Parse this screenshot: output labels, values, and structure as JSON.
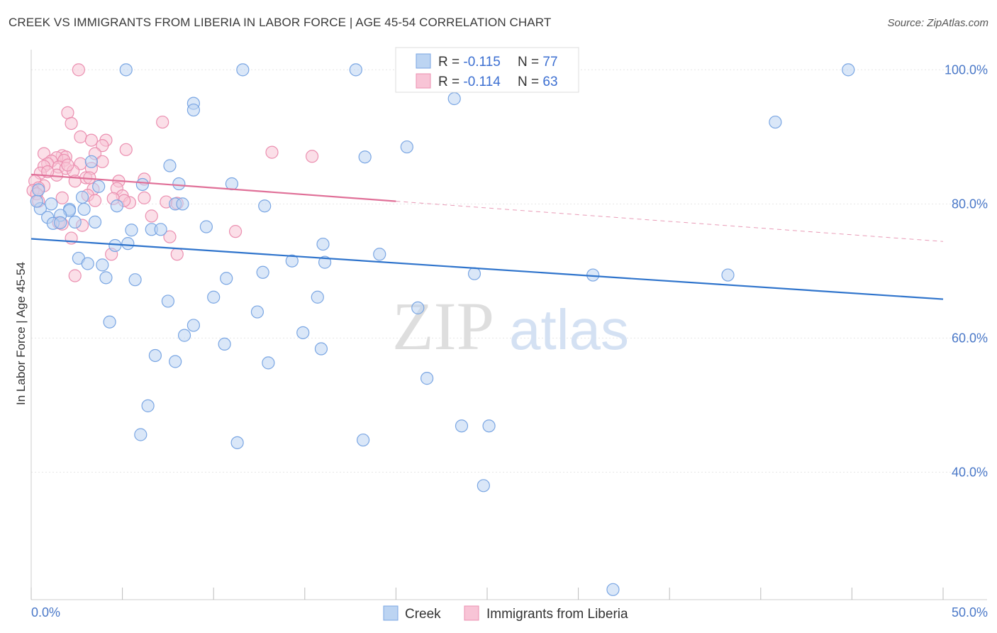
{
  "title": "CREEK VS IMMIGRANTS FROM LIBERIA IN LABOR FORCE | AGE 45-54 CORRELATION CHART",
  "source": "Source: ZipAtlas.com",
  "watermark": {
    "zip": "ZIP",
    "atlas": "atlas"
  },
  "chart_data": {
    "type": "scatter",
    "title": "CREEK VS IMMIGRANTS FROM LIBERIA IN LABOR FORCE | AGE 45-54 CORRELATION CHART",
    "xlabel": "",
    "ylabel": "In Labor Force | Age 45-54",
    "xlim": [
      0,
      50
    ],
    "ylim": [
      21,
      103
    ],
    "x_tick_labels": [
      "0.0%",
      "50.0%"
    ],
    "y_ticks": [
      40,
      60,
      80,
      100
    ],
    "y_tick_labels": [
      "40.0%",
      "60.0%",
      "80.0%",
      "100.0%"
    ],
    "grid": true,
    "legend_position": "top-center",
    "colors": {
      "creek_fill": "#bcd4f2",
      "creek_stroke": "#7aa6e3",
      "creek_line": "#2f74cc",
      "liberia_fill": "#f8c4d6",
      "liberia_stroke": "#eb8fb0",
      "liberia_line": "#e07098"
    },
    "stats": [
      {
        "r_label": "R = ",
        "r": "-0.115",
        "n_label": "N = ",
        "n": "77"
      },
      {
        "r_label": "R = ",
        "r": "-0.114",
        "n_label": "N = ",
        "n": "63"
      }
    ],
    "series": [
      {
        "name": "Creek",
        "trend": {
          "x": [
            0,
            50
          ],
          "y": [
            74.8,
            65.8
          ]
        },
        "points": [
          [
            5.2,
            100
          ],
          [
            11.6,
            100
          ],
          [
            17.8,
            100
          ],
          [
            44.8,
            100
          ],
          [
            8.9,
            95
          ],
          [
            8.9,
            94
          ],
          [
            23.2,
            95.7
          ],
          [
            40.8,
            92.2
          ],
          [
            20.6,
            88.5
          ],
          [
            18.3,
            87
          ],
          [
            7.6,
            85.7
          ],
          [
            3.3,
            86.3
          ],
          [
            11.0,
            83
          ],
          [
            8.1,
            83
          ],
          [
            6.1,
            82.9
          ],
          [
            3.7,
            82.6
          ],
          [
            2.8,
            81
          ],
          [
            1.1,
            80
          ],
          [
            0.5,
            79.3
          ],
          [
            2.1,
            79.2
          ],
          [
            2.1,
            79
          ],
          [
            4.7,
            79.7
          ],
          [
            7.9,
            80
          ],
          [
            8.3,
            80
          ],
          [
            12.8,
            79.7
          ],
          [
            1.6,
            78.3
          ],
          [
            0.9,
            78
          ],
          [
            3.5,
            77.3
          ],
          [
            1.2,
            77.1
          ],
          [
            2.4,
            77.3
          ],
          [
            9.6,
            76.6
          ],
          [
            5.5,
            76.1
          ],
          [
            6.6,
            76.2
          ],
          [
            7.1,
            76.2
          ],
          [
            5.3,
            74.1
          ],
          [
            4.6,
            73.8
          ],
          [
            16.0,
            74
          ],
          [
            19.1,
            72.5
          ],
          [
            16.1,
            71.3
          ],
          [
            14.3,
            71.5
          ],
          [
            2.6,
            71.9
          ],
          [
            3.1,
            71.1
          ],
          [
            3.9,
            70.9
          ],
          [
            4.1,
            69
          ],
          [
            5.7,
            68.7
          ],
          [
            10.7,
            68.9
          ],
          [
            12.7,
            69.8
          ],
          [
            24.3,
            69.6
          ],
          [
            30.8,
            69.4
          ],
          [
            38.2,
            69.4
          ],
          [
            10.0,
            66.1
          ],
          [
            15.7,
            66.1
          ],
          [
            7.5,
            65.5
          ],
          [
            12.4,
            63.9
          ],
          [
            21.2,
            64.5
          ],
          [
            4.3,
            62.4
          ],
          [
            8.9,
            61.9
          ],
          [
            8.4,
            60.4
          ],
          [
            14.9,
            60.8
          ],
          [
            10.6,
            59.1
          ],
          [
            15.9,
            58.4
          ],
          [
            6.8,
            57.4
          ],
          [
            7.9,
            56.5
          ],
          [
            13.0,
            56.3
          ],
          [
            21.7,
            54
          ],
          [
            6.4,
            49.9
          ],
          [
            23.6,
            46.9
          ],
          [
            25.1,
            46.9
          ],
          [
            6.0,
            45.6
          ],
          [
            11.3,
            44.4
          ],
          [
            18.2,
            44.8
          ],
          [
            24.8,
            38
          ],
          [
            31.9,
            22.5
          ],
          [
            0.3,
            80.4
          ],
          [
            0.4,
            82.1
          ],
          [
            1.6,
            77.2
          ],
          [
            2.9,
            79.2
          ]
        ]
      },
      {
        "name": "Immigrants from Liberia",
        "trend": {
          "x": [
            0,
            20
          ],
          "y": [
            84.4,
            80.4
          ]
        },
        "trend_extension": {
          "x": [
            20,
            50
          ],
          "y": [
            80.4,
            74.4
          ]
        },
        "points": [
          [
            2.6,
            100
          ],
          [
            2.0,
            93.6
          ],
          [
            2.2,
            92
          ],
          [
            7.2,
            92.2
          ],
          [
            2.7,
            90
          ],
          [
            3.3,
            89.5
          ],
          [
            4.1,
            89.5
          ],
          [
            3.9,
            88.7
          ],
          [
            5.2,
            88.1
          ],
          [
            13.2,
            87.7
          ],
          [
            15.4,
            87.1
          ],
          [
            0.7,
            87.5
          ],
          [
            1.7,
            87.2
          ],
          [
            1.9,
            87
          ],
          [
            1.4,
            86.9
          ],
          [
            3.5,
            87.5
          ],
          [
            1.1,
            86.4
          ],
          [
            0.9,
            86
          ],
          [
            1.8,
            86.5
          ],
          [
            3.9,
            86.3
          ],
          [
            2.7,
            86
          ],
          [
            0.7,
            85.6
          ],
          [
            1.5,
            85.5
          ],
          [
            1.9,
            85.3
          ],
          [
            3.3,
            85.3
          ],
          [
            0.5,
            84.6
          ],
          [
            1.4,
            84.3
          ],
          [
            2.3,
            84.9
          ],
          [
            3.0,
            83.9
          ],
          [
            3.2,
            83.9
          ],
          [
            4.8,
            83.4
          ],
          [
            6.2,
            83.7
          ],
          [
            2.4,
            83.4
          ],
          [
            0.2,
            83.4
          ],
          [
            0.7,
            82.7
          ],
          [
            3.4,
            82.2
          ],
          [
            0.4,
            82.4
          ],
          [
            3.1,
            81.3
          ],
          [
            4.7,
            82.3
          ],
          [
            0.1,
            82
          ],
          [
            0.3,
            81.5
          ],
          [
            1.7,
            80.9
          ],
          [
            5.0,
            81.2
          ],
          [
            4.5,
            80.8
          ],
          [
            0.4,
            80.4
          ],
          [
            5.4,
            80.2
          ],
          [
            7.4,
            80.3
          ],
          [
            8.0,
            80.1
          ],
          [
            6.6,
            78.2
          ],
          [
            1.5,
            77.2
          ],
          [
            1.7,
            77
          ],
          [
            2.8,
            76.8
          ],
          [
            11.2,
            75.9
          ],
          [
            7.6,
            75.1
          ],
          [
            2.2,
            74.9
          ],
          [
            4.4,
            72.5
          ],
          [
            8.0,
            72.5
          ],
          [
            2.4,
            69.3
          ],
          [
            6.2,
            80.9
          ],
          [
            5.1,
            80.5
          ],
          [
            2.0,
            85.8
          ],
          [
            3.5,
            80.5
          ],
          [
            0.9,
            84.8
          ]
        ]
      }
    ]
  }
}
